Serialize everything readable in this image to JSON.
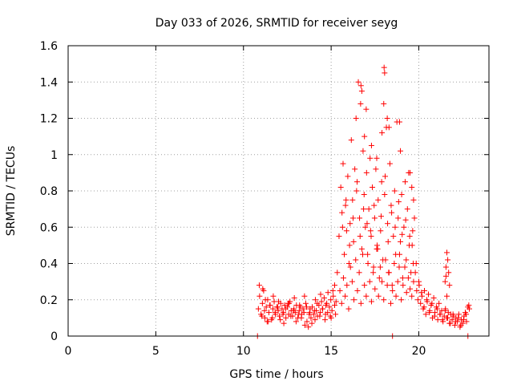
{
  "chart_data": {
    "type": "scatter",
    "title": "Day 033 of 2026, SRMTID for receiver seyg",
    "xlabel": "GPS time / hours",
    "ylabel": "SRMTID / TECUs",
    "xlim": [
      0,
      24
    ],
    "ylim": [
      0,
      1.6
    ],
    "xticks": [
      0,
      5,
      10,
      15,
      20
    ],
    "yticks": [
      0,
      0.2,
      0.4,
      0.6,
      0.8,
      1,
      1.2,
      1.4,
      1.6
    ],
    "xtick_labels": [
      "0",
      "5",
      "10",
      "15",
      "20"
    ],
    "ytick_labels": [
      "0",
      "0.2",
      "0.4",
      "0.6",
      "0.8",
      "1",
      "1.2",
      "1.4",
      "1.6"
    ],
    "grid": true,
    "marker": "plus",
    "color": "#ff0000",
    "series": [
      {
        "name": "SRMTID",
        "x": [
          10.8,
          18.5,
          22.8,
          10.85,
          10.92,
          11.0,
          11.08,
          11.15,
          11.22,
          11.3,
          11.38,
          11.45,
          11.52,
          11.6,
          11.68,
          11.75,
          11.82,
          11.9,
          11.98,
          12.05,
          12.12,
          12.2,
          12.28,
          12.35,
          12.42,
          12.5,
          12.58,
          12.65,
          12.72,
          12.8,
          12.88,
          12.95,
          13.02,
          13.1,
          13.18,
          13.25,
          13.32,
          13.4,
          13.48,
          13.55,
          13.62,
          13.7,
          13.78,
          13.85,
          13.92,
          14.0,
          14.08,
          14.15,
          14.22,
          14.3,
          14.38,
          14.45,
          14.52,
          14.6,
          14.68,
          14.75,
          14.82,
          14.9,
          14.98,
          15.05,
          15.12,
          15.2,
          15.28,
          10.9,
          11.05,
          11.2,
          11.35,
          11.5,
          11.65,
          11.8,
          11.95,
          12.1,
          12.25,
          12.4,
          12.55,
          12.7,
          12.85,
          13.0,
          13.15,
          13.3,
          13.45,
          13.6,
          13.75,
          13.9,
          14.05,
          14.2,
          14.35,
          14.5,
          14.65,
          14.8,
          14.95,
          15.1,
          15.25,
          11.1,
          11.25,
          11.4,
          11.7,
          12.0,
          12.3,
          12.6,
          12.9,
          13.2,
          13.5,
          13.8,
          14.1,
          14.4,
          14.7,
          15.0,
          15.2,
          15.35,
          15.45,
          15.55,
          15.62,
          15.68,
          15.75,
          15.82,
          15.88,
          15.95,
          16.02,
          16.08,
          16.15,
          16.22,
          16.28,
          16.35,
          16.42,
          16.48,
          16.55,
          16.62,
          16.68,
          16.75,
          16.82,
          16.88,
          16.95,
          17.02,
          17.08,
          17.15,
          17.22,
          17.28,
          17.35,
          17.42,
          17.48,
          17.55,
          17.62,
          17.68,
          17.75,
          17.82,
          17.88,
          17.95,
          18.02,
          18.08,
          18.15,
          18.22,
          18.28,
          18.35,
          18.42,
          18.48,
          18.55,
          18.62,
          18.68,
          18.75,
          18.82,
          18.88,
          18.95,
          19.02,
          19.08,
          19.15,
          19.22,
          19.28,
          19.35,
          19.42,
          19.48,
          19.55,
          19.62,
          19.68,
          19.75,
          15.5,
          15.6,
          15.7,
          15.8,
          15.9,
          16.0,
          16.1,
          16.2,
          16.3,
          16.4,
          16.5,
          16.6,
          16.7,
          16.8,
          16.9,
          17.0,
          17.1,
          17.2,
          17.3,
          17.4,
          17.5,
          17.6,
          17.7,
          17.8,
          17.9,
          18.0,
          18.1,
          18.2,
          18.3,
          18.4,
          18.5,
          18.6,
          18.7,
          18.8,
          18.9,
          19.0,
          19.1,
          19.2,
          19.3,
          19.4,
          19.5,
          19.6,
          19.7,
          15.65,
          15.85,
          16.05,
          16.25,
          16.45,
          16.65,
          16.85,
          17.05,
          17.25,
          17.45,
          17.65,
          17.85,
          18.05,
          18.25,
          18.45,
          18.65,
          18.85,
          19.05,
          19.25,
          19.45,
          19.65,
          16.7,
          16.75,
          16.9,
          17.0,
          17.3,
          17.6,
          17.9,
          18.0,
          18.05,
          18.2,
          18.3,
          18.9,
          18.95,
          19.5,
          19.6,
          19.7,
          19.8,
          19.88,
          19.95,
          20.02,
          20.1,
          20.18,
          20.25,
          20.32,
          20.4,
          20.48,
          20.55,
          20.62,
          20.7,
          20.78,
          20.85,
          20.92,
          21.0,
          21.08,
          21.15,
          21.22,
          21.3,
          21.38,
          21.45,
          21.52,
          21.6,
          21.68,
          21.75,
          21.82,
          21.9,
          21.98,
          22.05,
          22.12,
          22.2,
          22.28,
          22.35,
          22.42,
          22.5,
          22.58,
          22.65,
          22.72,
          22.8,
          22.88,
          19.85,
          20.0,
          20.15,
          20.3,
          20.45,
          20.6,
          20.75,
          20.9,
          21.05,
          21.2,
          21.35,
          21.5,
          21.65,
          21.8,
          21.95,
          22.1,
          22.25,
          22.4,
          22.55,
          22.7,
          22.85,
          21.5,
          21.55,
          21.6,
          21.65,
          21.7,
          21.75,
          21.6,
          21.55
        ],
        "y": [
          0,
          0,
          0,
          0.15,
          0.22,
          0.12,
          0.18,
          0.25,
          0.1,
          0.16,
          0.2,
          0.13,
          0.17,
          0.09,
          0.15,
          0.19,
          0.12,
          0.16,
          0.14,
          0.11,
          0.18,
          0.15,
          0.13,
          0.17,
          0.1,
          0.16,
          0.12,
          0.19,
          0.14,
          0.11,
          0.15,
          0.13,
          0.17,
          0.1,
          0.14,
          0.16,
          0.12,
          0.15,
          0.22,
          0.18,
          0.08,
          0.05,
          0.13,
          0.1,
          0.16,
          0.12,
          0.09,
          0.14,
          0.11,
          0.17,
          0.13,
          0.19,
          0.15,
          0.21,
          0.12,
          0.18,
          0.24,
          0.16,
          0.2,
          0.14,
          0.22,
          0.17,
          0.19,
          0.28,
          0.11,
          0.14,
          0.08,
          0.17,
          0.1,
          0.13,
          0.16,
          0.09,
          0.12,
          0.15,
          0.18,
          0.11,
          0.14,
          0.08,
          0.12,
          0.1,
          0.13,
          0.16,
          0.12,
          0.07,
          0.14,
          0.18,
          0.11,
          0.15,
          0.09,
          0.13,
          0.11,
          0.25,
          0.12,
          0.26,
          0.2,
          0.08,
          0.22,
          0.19,
          0.07,
          0.18,
          0.21,
          0.17,
          0.06,
          0.15,
          0.2,
          0.23,
          0.17,
          0.1,
          0.28,
          0.35,
          0.55,
          0.82,
          0.68,
          0.95,
          0.45,
          0.72,
          0.58,
          0.88,
          0.4,
          0.62,
          1.08,
          0.75,
          0.52,
          0.92,
          1.2,
          0.85,
          1.4,
          0.65,
          1.28,
          0.48,
          1.02,
          0.78,
          0.6,
          0.9,
          0.45,
          0.7,
          0.98,
          0.55,
          0.82,
          0.38,
          0.65,
          0.92,
          0.5,
          0.75,
          0.32,
          0.58,
          0.85,
          0.42,
          1.48,
          0.88,
          1.15,
          0.62,
          0.35,
          0.95,
          0.72,
          0.28,
          0.55,
          0.8,
          0.45,
          1.18,
          0.65,
          0.38,
          0.52,
          0.78,
          0.32,
          0.6,
          0.85,
          0.42,
          0.7,
          0.9,
          0.55,
          0.35,
          0.5,
          0.4,
          0.65,
          0.25,
          0.18,
          0.32,
          0.22,
          0.28,
          0.15,
          0.38,
          0.3,
          0.2,
          0.42,
          0.25,
          0.35,
          0.18,
          0.45,
          0.28,
          0.22,
          0.4,
          0.3,
          0.19,
          0.35,
          0.26,
          0.48,
          0.22,
          0.38,
          0.3,
          0.2,
          0.42,
          0.28,
          0.35,
          0.18,
          0.25,
          0.4,
          0.22,
          0.3,
          0.45,
          0.2,
          0.28,
          0.38,
          0.24,
          0.32,
          0.26,
          0.22,
          0.3,
          0.6,
          0.75,
          0.5,
          0.65,
          0.8,
          0.55,
          0.7,
          0.62,
          0.58,
          0.72,
          0.48,
          0.66,
          0.78,
          0.52,
          0.68,
          0.6,
          0.74,
          0.56,
          0.64,
          0.5,
          0.58,
          1.38,
          1.35,
          1.1,
          1.25,
          1.05,
          0.98,
          1.12,
          1.28,
          1.45,
          1.2,
          1.15,
          1.18,
          1.02,
          0.9,
          0.82,
          0.75,
          0.35,
          0.25,
          0.2,
          0.28,
          0.18,
          0.22,
          0.15,
          0.25,
          0.12,
          0.19,
          0.23,
          0.14,
          0.17,
          0.1,
          0.21,
          0.13,
          0.16,
          0.09,
          0.18,
          0.12,
          0.14,
          0.08,
          0.11,
          0.15,
          0.1,
          0.13,
          0.07,
          0.12,
          0.09,
          0.11,
          0.06,
          0.1,
          0.08,
          0.12,
          0.05,
          0.09,
          0.07,
          0.11,
          0.13,
          0.08,
          0.16,
          0.15,
          0.4,
          0.3,
          0.24,
          0.16,
          0.2,
          0.13,
          0.18,
          0.11,
          0.15,
          0.12,
          0.09,
          0.14,
          0.1,
          0.07,
          0.12,
          0.08,
          0.1,
          0.06,
          0.09,
          0.12,
          0.17,
          0.3,
          0.38,
          0.46,
          0.42,
          0.35,
          0.28,
          0.22,
          0.33
        ]
      }
    ]
  }
}
